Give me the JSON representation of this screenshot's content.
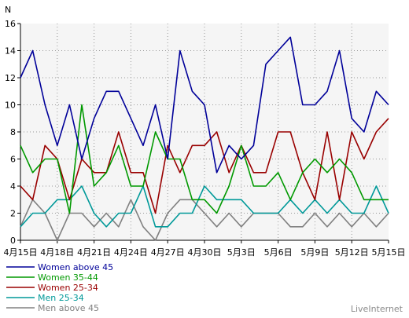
{
  "chart_data": {
    "type": "line",
    "ylabel": "N",
    "ylim": [
      0,
      16
    ],
    "yticks": [
      0,
      2,
      4,
      6,
      8,
      10,
      12,
      14,
      16
    ],
    "grid": true,
    "legend_position": "bottom-left",
    "x": [
      "4/15",
      "4/16",
      "4/17",
      "4/18",
      "4/19",
      "4/20",
      "4/21",
      "4/22",
      "4/23",
      "4/24",
      "4/25",
      "4/26",
      "4/27",
      "4/28",
      "4/29",
      "4/30",
      "5/1",
      "5/2",
      "5/3",
      "5/4",
      "5/5",
      "5/6",
      "5/7",
      "5/8",
      "5/9",
      "5/10",
      "5/11",
      "5/12",
      "5/13",
      "5/14",
      "5/15"
    ],
    "x_tick_labels": [
      "4月15日",
      "4月18日",
      "4月21日",
      "4月24日",
      "4月27日",
      "4月30日",
      "5月3日",
      "5月6日",
      "5月9日",
      "5月12日",
      "5月15日"
    ],
    "series": [
      {
        "name": "Women above 45",
        "color": "#000099",
        "values": [
          12,
          14,
          10,
          7,
          10,
          6,
          9,
          11,
          11,
          9,
          7,
          10,
          6,
          14,
          11,
          10,
          5,
          7,
          6,
          7,
          13,
          14,
          15,
          10,
          10,
          11,
          14,
          9,
          8,
          11,
          10
        ]
      },
      {
        "name": "Women 35-44",
        "color": "#009900",
        "values": [
          7,
          5,
          6,
          6,
          2,
          10,
          4,
          5,
          7,
          4,
          4,
          8,
          6,
          6,
          3,
          3,
          2,
          4,
          7,
          4,
          4,
          5,
          3,
          5,
          6,
          5,
          6,
          5,
          3,
          3,
          3
        ]
      },
      {
        "name": "Women 25-34",
        "color": "#990000",
        "values": [
          4,
          3,
          7,
          6,
          3,
          6,
          5,
          5,
          8,
          5,
          5,
          2,
          7,
          5,
          7,
          7,
          8,
          5,
          7,
          5,
          5,
          8,
          8,
          5,
          3,
          8,
          3,
          8,
          6,
          8,
          9
        ]
      },
      {
        "name": "Men 25-34",
        "color": "#009999",
        "values": [
          1,
          2,
          2,
          3,
          3,
          4,
          2,
          1,
          2,
          2,
          4,
          1,
          1,
          2,
          2,
          4,
          3,
          3,
          3,
          2,
          2,
          2,
          3,
          2,
          3,
          2,
          3,
          2,
          2,
          4,
          2
        ]
      },
      {
        "name": "Men above 45",
        "color": "#808080",
        "values": [
          1,
          3,
          2,
          0,
          2,
          2,
          1,
          2,
          1,
          3,
          1,
          0,
          2,
          3,
          3,
          2,
          1,
          2,
          1,
          2,
          2,
          2,
          1,
          1,
          2,
          1,
          2,
          1,
          2,
          1,
          2
        ]
      }
    ]
  },
  "watermark": "LiveInternet"
}
